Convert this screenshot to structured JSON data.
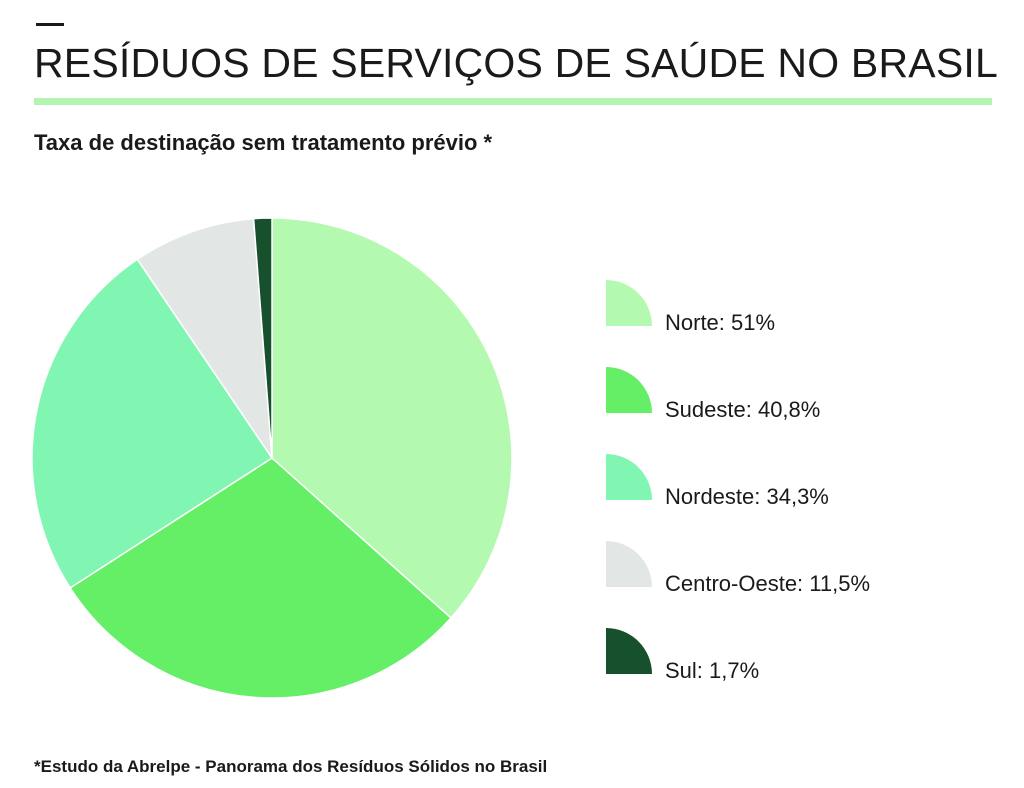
{
  "header": {
    "title": "RESÍDUOS DE SERVIÇOS DE SAÚDE NO BRASIL",
    "subtitle": "Taxa de destinação sem tratamento prévio *"
  },
  "chart_data": {
    "type": "pie",
    "title": "RESÍDUOS DE SERVIÇOS DE SAÚDE NO BRASIL",
    "subtitle": "Taxa de destinação sem tratamento prévio *",
    "legend_position": "right",
    "slices": [
      {
        "name": "Norte",
        "value": 51,
        "label": "Norte: 51%",
        "color": "#b4f9b0"
      },
      {
        "name": "Sudeste",
        "value": 40.8,
        "label": "Sudeste: 40,8%",
        "color": "#65ef66"
      },
      {
        "name": "Nordeste",
        "value": 34.3,
        "label": "Nordeste: 34,3%",
        "color": "#80f6b2"
      },
      {
        "name": "Centro-Oeste",
        "value": 11.5,
        "label": "Centro-Oeste: 11,5%",
        "color": "#e2e6e5"
      },
      {
        "name": "Sul",
        "value": 1.7,
        "label": "Sul: 1,7%",
        "color": "#17502c"
      }
    ]
  },
  "footnote": "*Estudo da Abrelpe - Panorama dos Resíduos Sólidos no Brasil"
}
